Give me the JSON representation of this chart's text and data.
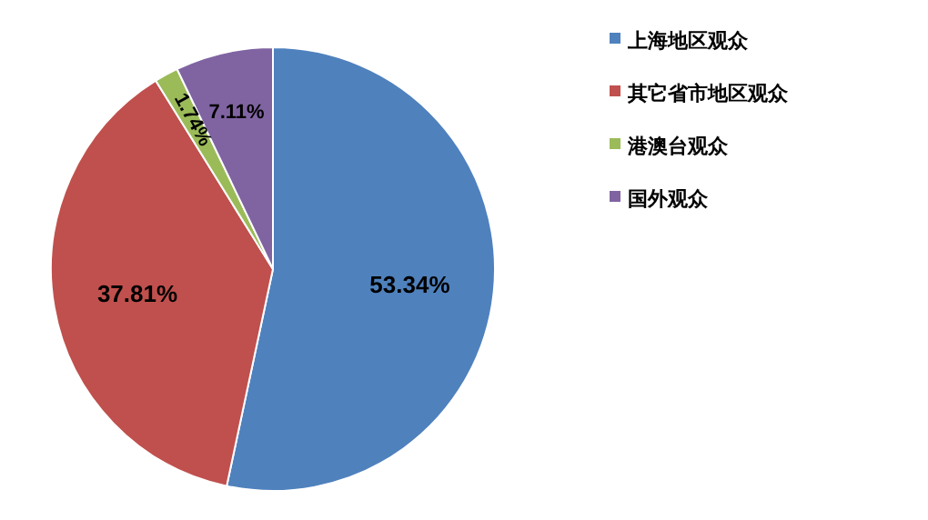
{
  "chart_data": {
    "type": "pie",
    "categories": [
      "上海地区观众",
      "其它省市地区观众",
      "港澳台观众",
      "国外观众"
    ],
    "values": [
      53.34,
      37.81,
      1.74,
      7.11
    ],
    "value_labels": [
      "53.34%",
      "37.81%",
      "1.74%",
      "7.11%"
    ],
    "colors": [
      "#4f81bd",
      "#c0504d",
      "#9bbb59",
      "#8064a2"
    ],
    "legend": "right"
  }
}
